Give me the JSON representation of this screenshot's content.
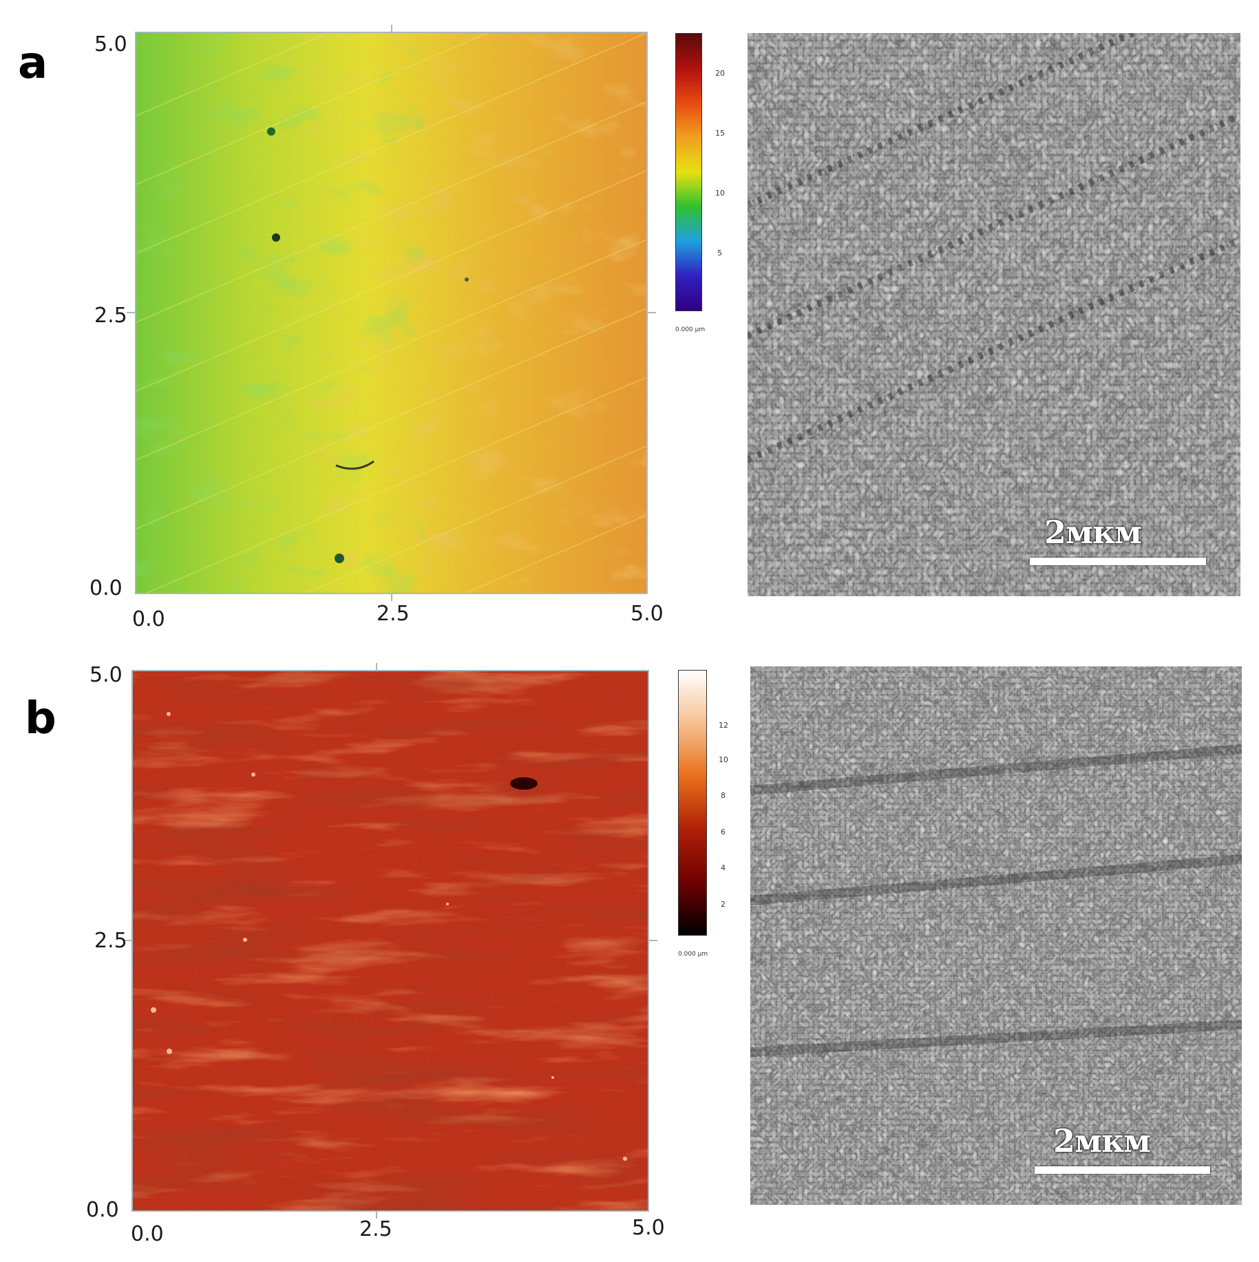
{
  "panels": {
    "a": {
      "letter": "a",
      "afm": {
        "x_ticks": [
          "0.0",
          "2.5",
          "5.0"
        ],
        "y_ticks": [
          "5.0",
          "2.5",
          "0.0"
        ],
        "colorbar": {
          "ticks": [
            "20",
            "15",
            "10",
            "5"
          ],
          "unit": "0.000 µm",
          "colors": [
            "#5a0a0a",
            "#b01010",
            "#e84a10",
            "#f0a020",
            "#e8e010",
            "#30c030",
            "#20a0e0",
            "#3020c0",
            "#300080"
          ]
        },
        "colors": {
          "left": "#7fd23a",
          "mid": "#e6e02a",
          "right": "#ee9a2c"
        }
      },
      "sem": {
        "scale_label": "2мкм"
      }
    },
    "b": {
      "letter": "b",
      "afm": {
        "x_ticks": [
          "0.0",
          "2.5",
          "5.0"
        ],
        "y_ticks": [
          "5.0",
          "2.5",
          "0.0"
        ],
        "colorbar": {
          "ticks": [
            "12",
            "10",
            "8",
            "6",
            "4",
            "2"
          ],
          "unit": "0.000 µm",
          "colors": [
            "#ffffff",
            "#f6c090",
            "#e8701a",
            "#b02008",
            "#700000",
            "#000000"
          ]
        },
        "colors": {
          "base": "#b82812",
          "dark": "#6a0c04",
          "light": "#e45a22"
        }
      },
      "sem": {
        "scale_label": "2мкм"
      }
    }
  }
}
